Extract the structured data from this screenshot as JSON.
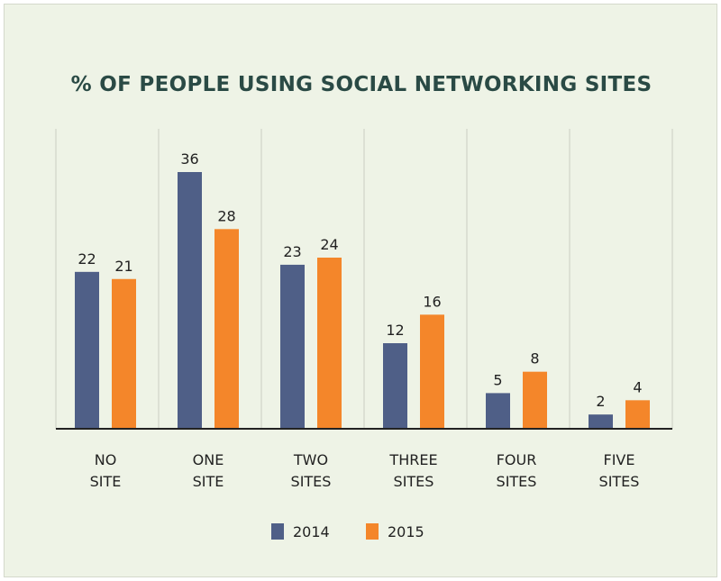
{
  "chart_data": {
    "type": "bar",
    "title": "% OF PEOPLE USING SOCIAL NETWORKING SITES",
    "categories": [
      [
        "NO",
        "SITE"
      ],
      [
        "ONE",
        "SITE"
      ],
      [
        "TWO",
        "SITES"
      ],
      [
        "THREE",
        "SITES"
      ],
      [
        "FOUR",
        "SITES"
      ],
      [
        "FIVE",
        "SITES"
      ]
    ],
    "series": [
      {
        "name": "2014",
        "color": "#4f5f87",
        "values": [
          22,
          36,
          23,
          12,
          5,
          2
        ]
      },
      {
        "name": "2015",
        "color": "#f4862a",
        "values": [
          21,
          28,
          24,
          16,
          8,
          4
        ]
      }
    ],
    "ylim": [
      0,
      40
    ],
    "grid": "vertical separators",
    "legend": "bottom-center",
    "data_labels": true
  }
}
